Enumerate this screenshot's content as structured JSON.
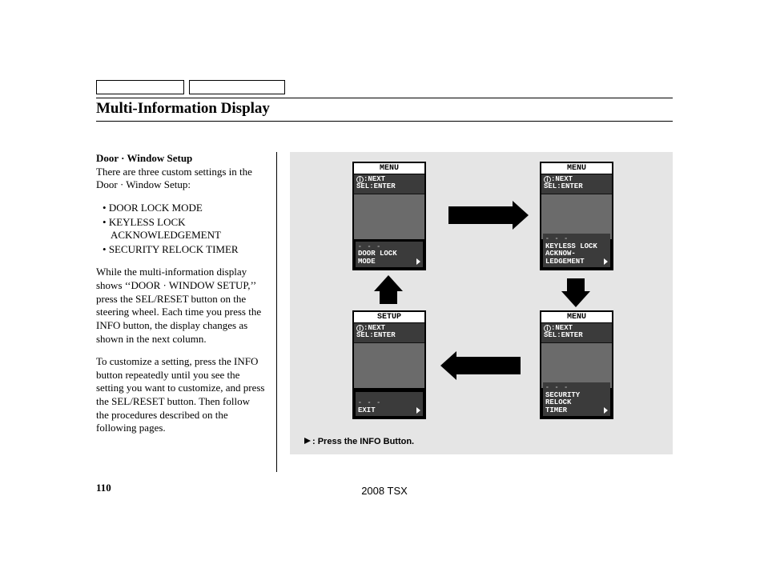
{
  "page": {
    "title": "Multi-Information Display",
    "page_number": "110",
    "model_year": "2008  TSX"
  },
  "text": {
    "heading": "Door · Window Setup",
    "intro": "There are three custom settings in the Door · Window Setup:",
    "bullets": [
      "DOOR LOCK MODE",
      "KEYLESS LOCK ACKNOWLEDGEMENT",
      "SECURITY RELOCK TIMER"
    ],
    "p1": "While the multi-information display shows ‘‘DOOR · WINDOW SETUP,’’ press the SEL/RESET button on the steering wheel. Each time you press the INFO button, the display changes as shown in the next column.",
    "p2": "To customize a setting, press the INFO button repeatedly until you see the setting you want to customize, and press the SEL/RESET button. Then follow the procedures described on the following pages."
  },
  "figure": {
    "panel_bg": "#e5e5e5",
    "screen_colors": {
      "frame": "#000000",
      "header_bg": "#ffffff",
      "sub_bg": "#3b3b3b",
      "mid_bg": "#6b6b6b",
      "text": "#ffffff"
    },
    "sub_line1_prefix": ":NEXT",
    "sub_line2": "SEL:ENTER",
    "screens": {
      "s1": {
        "header": "MENU",
        "bottom": "DOOR LOCK\nMODE"
      },
      "s2": {
        "header": "MENU",
        "bottom": "KEYLESS LOCK\nACKNOW-\nLEDGEMENT"
      },
      "s3": {
        "header": "SETUP",
        "bottom": "EXIT"
      },
      "s4": {
        "header": "MENU",
        "bottom": "SECURITY\nRELOCK\nTIMER"
      }
    },
    "caption": ": Press the INFO Button."
  }
}
